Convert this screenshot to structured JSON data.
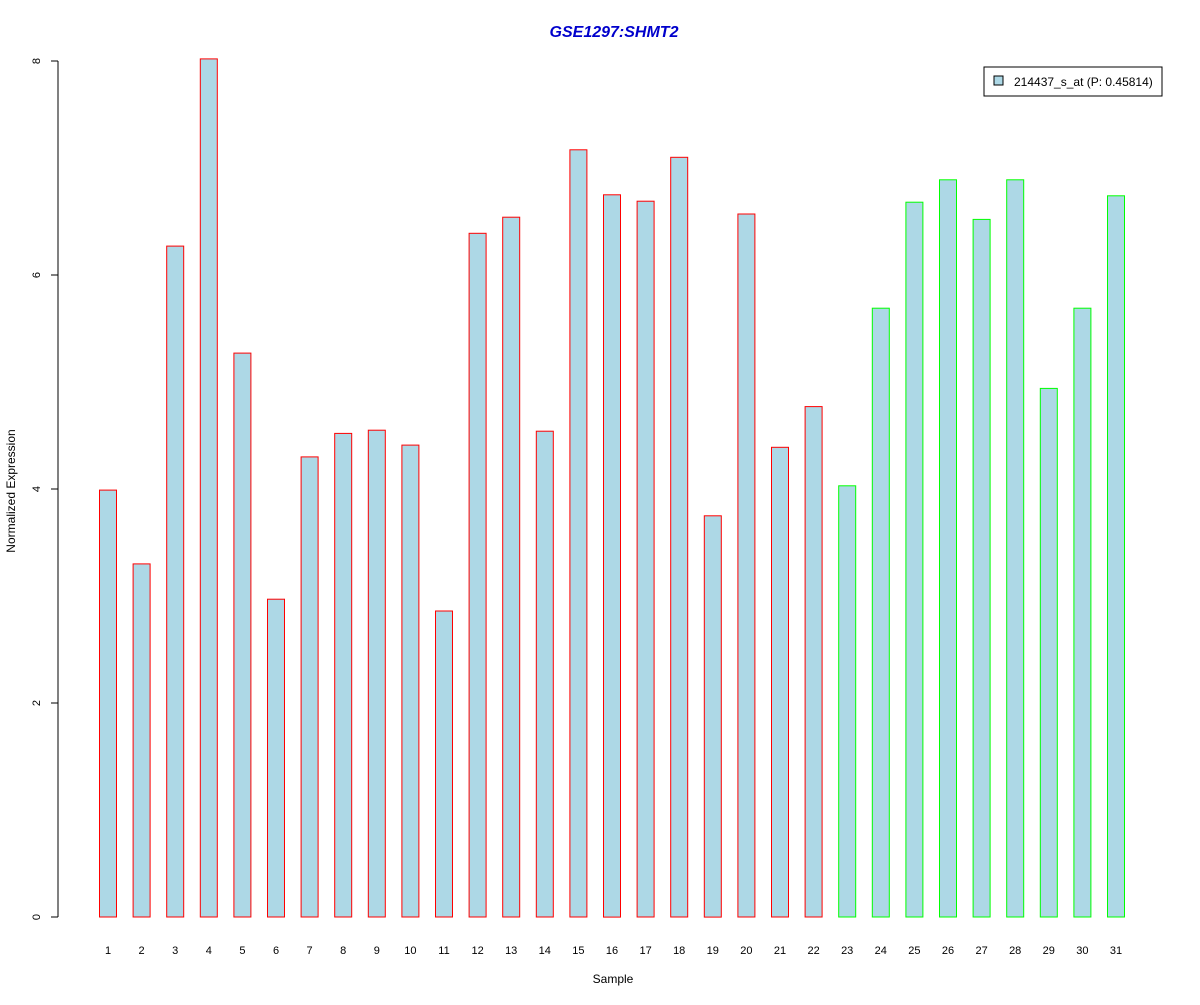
{
  "chart_data": {
    "type": "bar",
    "title": "GSE1297:SHMT2",
    "xlabel": "Sample",
    "ylabel": "Normalized Expression",
    "ylim": [
      0,
      8
    ],
    "yticks": [
      "0",
      "2",
      "4",
      "6",
      "8"
    ],
    "grid": false,
    "legend_position": "top-right",
    "categories": [
      "1",
      "2",
      "3",
      "4",
      "5",
      "6",
      "7",
      "8",
      "9",
      "10",
      "11",
      "12",
      "13",
      "14",
      "15",
      "16",
      "17",
      "18",
      "19",
      "20",
      "21",
      "22",
      "23",
      "24",
      "25",
      "26",
      "27",
      "28",
      "29",
      "30",
      "31"
    ],
    "series": [
      {
        "name": "214437_s_at (P: 0.45814)",
        "values": [
          3.99,
          3.3,
          6.27,
          8.02,
          5.27,
          2.97,
          4.3,
          4.52,
          4.55,
          4.41,
          2.86,
          6.39,
          6.54,
          4.54,
          7.17,
          6.75,
          6.69,
          7.1,
          3.75,
          6.57,
          4.39,
          4.77,
          4.03,
          5.69,
          6.68,
          6.89,
          6.52,
          6.89,
          4.94,
          5.69,
          6.74
        ]
      }
    ],
    "bar_groups": [
      1,
      1,
      1,
      1,
      1,
      1,
      1,
      1,
      1,
      1,
      1,
      1,
      1,
      1,
      1,
      1,
      1,
      1,
      1,
      1,
      1,
      1,
      2,
      2,
      2,
      2,
      2,
      2,
      2,
      2,
      2
    ],
    "colors": {
      "bar_fill": "#add8e6",
      "group1_border": "#ff0000",
      "group2_border": "#00ff00",
      "title": "#0000cc",
      "axis": "#000000"
    }
  }
}
